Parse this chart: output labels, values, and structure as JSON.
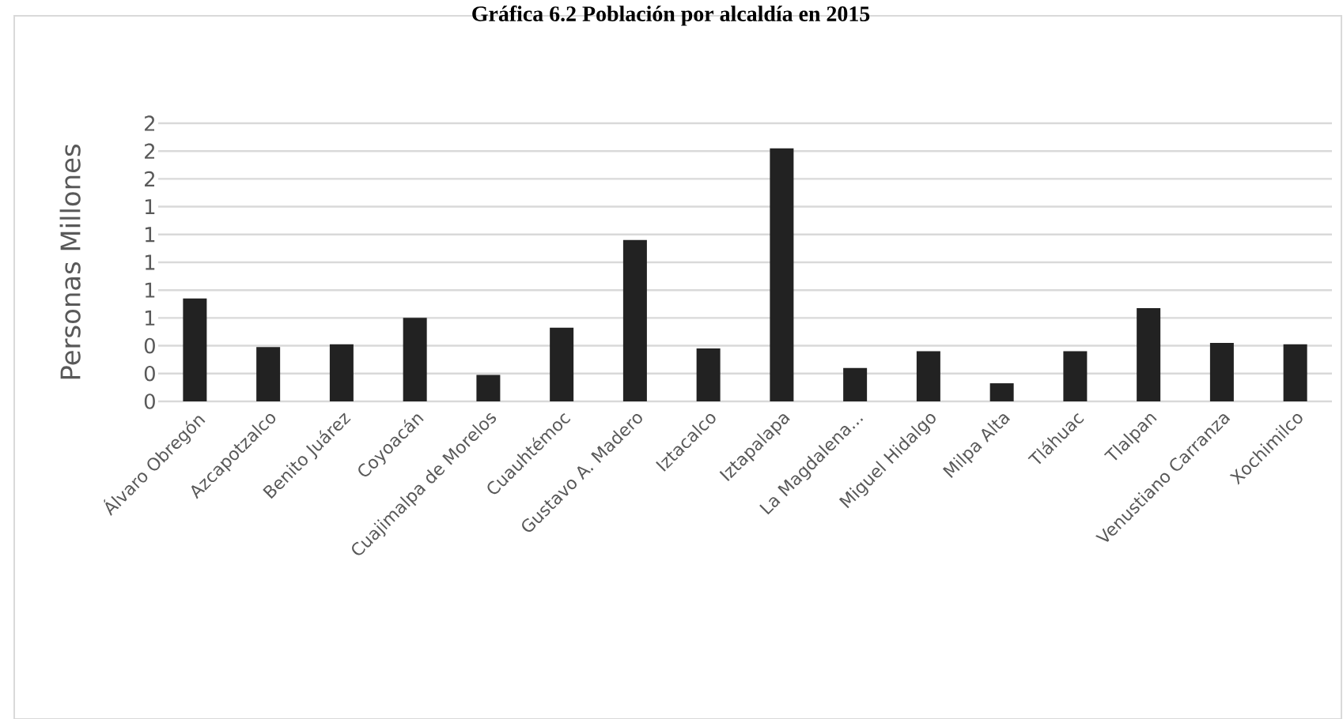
{
  "chart_data": {
    "type": "bar",
    "title": "Gráfica 6.2 Población por alcaldía en 2015",
    "ylabel": "Personas  Millones",
    "categories": [
      "Álvaro Obregón",
      "Azcapotzalco",
      "Benito Juárez",
      "Coyoacán",
      "Cuajimalpa de Morelos",
      "Cuauhtémoc",
      "Gustavo A. Madero",
      "Iztacalco",
      "Iztapalapa",
      "La Magdalena...",
      "Miguel Hidalgo",
      "Milpa Alta",
      "Tláhuac",
      "Tlalpan",
      "Venustiano Carranza",
      "Xochimilco"
    ],
    "values": [
      0.74,
      0.39,
      0.41,
      0.6,
      0.19,
      0.53,
      1.16,
      0.38,
      1.82,
      0.24,
      0.36,
      0.13,
      0.36,
      0.67,
      0.42,
      0.41
    ],
    "color": "#222222",
    "ylim": [
      0,
      2
    ],
    "yticks": [
      {
        "value": 0,
        "label": "0"
      },
      {
        "value": 0.2,
        "label": "0"
      },
      {
        "value": 0.4,
        "label": "0"
      },
      {
        "value": 0.6,
        "label": "1"
      },
      {
        "value": 0.8,
        "label": "1"
      },
      {
        "value": 1.0,
        "label": "1"
      },
      {
        "value": 1.2,
        "label": "1"
      },
      {
        "value": 1.4,
        "label": "1"
      },
      {
        "value": 1.6,
        "label": "2"
      },
      {
        "value": 1.8,
        "label": "2"
      },
      {
        "value": 2.0,
        "label": "2"
      }
    ],
    "grid": "y"
  }
}
